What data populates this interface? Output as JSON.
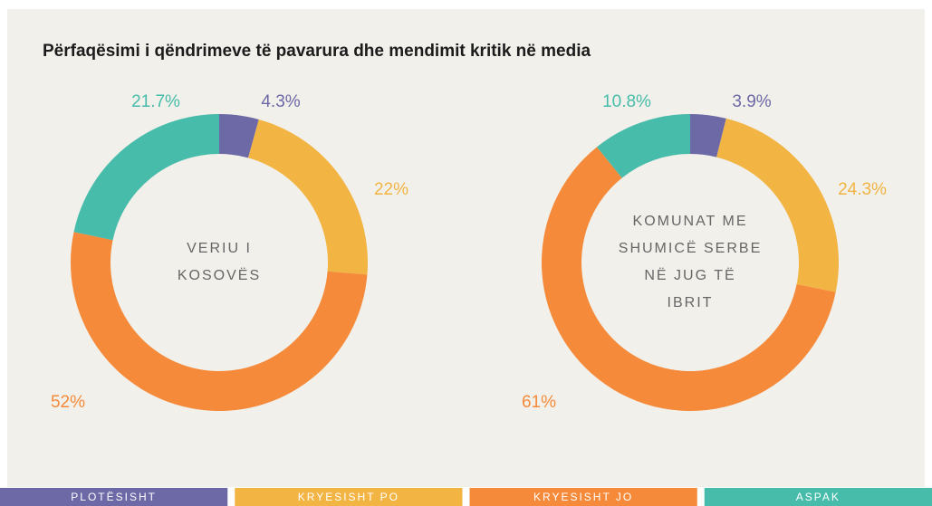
{
  "title": "Përfaqësimi i qëndrimeve të pavarura dhe mendimit kritik në media",
  "legend": [
    {
      "name": "PLOTËSISHT",
      "color": "#6c69a6"
    },
    {
      "name": "KRYESISHT PO",
      "color": "#f2b443"
    },
    {
      "name": "KRYESISHT JO",
      "color": "#f58a3a"
    },
    {
      "name": "ASPAK",
      "color": "#47bcaa"
    }
  ],
  "chart_data": [
    {
      "type": "donut",
      "center_label": [
        "VERIU I",
        "KOSOVËS"
      ],
      "values": [
        4.3,
        22,
        52,
        21.7
      ],
      "value_labels": [
        "4.3%",
        "22%",
        "52%",
        "21.7%"
      ]
    },
    {
      "type": "donut",
      "center_label": [
        "KOMUNAT ME",
        "SHUMICË SERBE",
        "NË JUG TË",
        "IBRIT"
      ],
      "values": [
        3.9,
        24.3,
        61,
        10.8
      ],
      "value_labels": [
        "3.9%",
        "24.3%",
        "61%",
        "10.8%"
      ]
    }
  ]
}
